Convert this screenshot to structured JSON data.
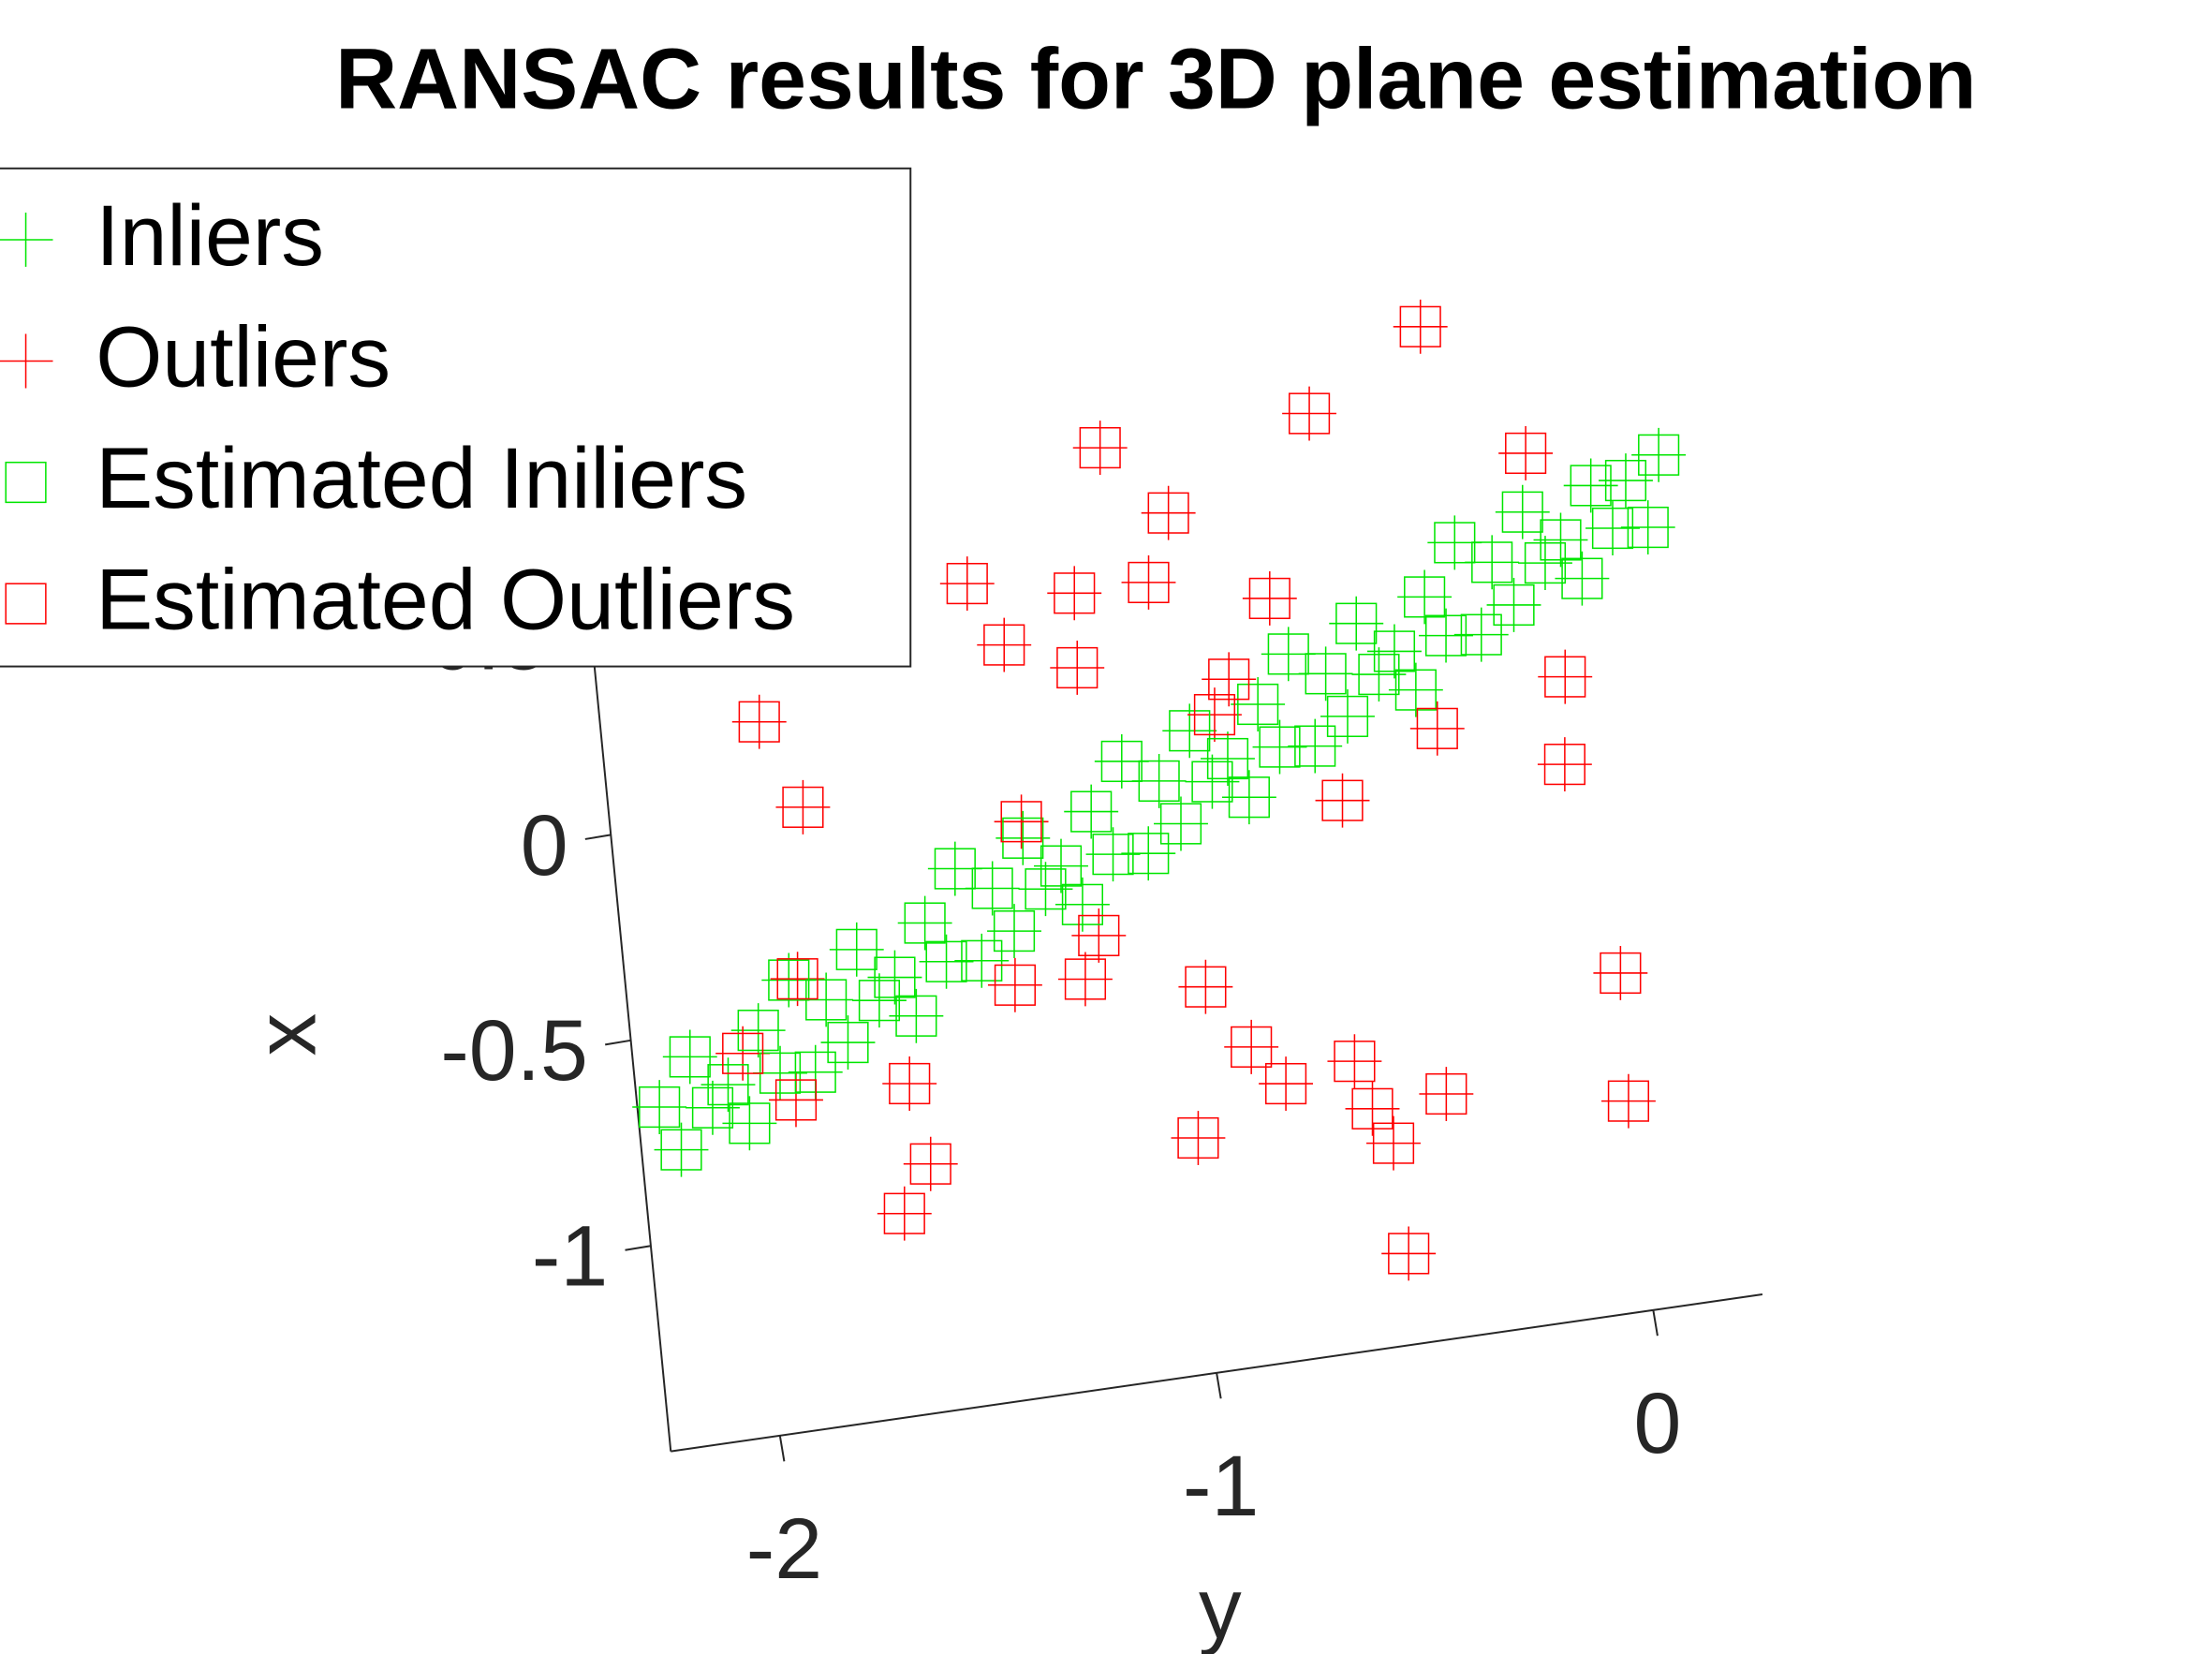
{
  "chart_data": {
    "type": "scatter3d",
    "title": "RANSAC results for 3D plane estimation",
    "xlabel": "y",
    "ylabel": "x",
    "xlim": [
      -2.25,
      0.25
    ],
    "ylim": [
      -1.5,
      1
    ],
    "xticks": [
      -2,
      -1,
      0
    ],
    "yticks": [
      -1,
      -0.5,
      0,
      0.5
    ],
    "legend": "northwest",
    "series": [
      {
        "name": "Inliers",
        "color": "#00e600",
        "marker": "plus",
        "x": [
          -2.2,
          -2.16,
          -2.12,
          -2.08,
          -2.04,
          -2,
          -1.96,
          -1.92,
          -1.88,
          -1.84,
          -1.8,
          -1.76,
          -1.72,
          -1.68,
          -1.64,
          -1.6,
          -1.56,
          -1.52,
          -1.48,
          -1.44,
          -1.4,
          -1.36,
          -1.32,
          -1.28,
          -1.24,
          -1.2,
          -1.16,
          -1.12,
          -1.08,
          -1.04,
          -1,
          -0.96,
          -0.92,
          -0.88,
          -0.84,
          -0.8,
          -0.76,
          -0.72,
          -0.68,
          -0.64,
          -0.6,
          -0.56,
          -0.52,
          -0.48,
          -0.44,
          -0.4,
          -0.36,
          -0.32,
          -0.28,
          -0.24,
          -0.2,
          -0.16,
          -0.12,
          -0.08,
          -0.04,
          0,
          0.04,
          0.08,
          0.12,
          0.16,
          0.2
        ],
        "values": [
          -0.67,
          -0.78,
          -0.56,
          -0.69,
          -0.64,
          -0.74,
          -0.52,
          -0.63,
          -0.41,
          -0.64,
          -0.47,
          -0.58,
          -0.36,
          -0.49,
          -0.44,
          -0.54,
          -0.32,
          -0.42,
          -0.2,
          -0.43,
          -0.26,
          -0.37,
          -0.15,
          -0.28,
          -0.23,
          -0.33,
          -0.11,
          -0.22,
          0,
          -0.23,
          -0.06,
          -0.17,
          0.05,
          -0.08,
          -0.03,
          -0.13,
          0.09,
          -0.02,
          0.2,
          -0.03,
          0.14,
          0.03,
          0.25,
          0.12,
          0.17,
          0.07,
          0.29,
          0.19,
          0.41,
          0.18,
          0.35,
          0.24,
          0.46,
          0.33,
          0.38,
          0.28,
          0.5,
          0.39,
          0.5,
          0.38,
          0.55
        ]
      },
      {
        "name": "Outliers",
        "color": "#ff0000",
        "marker": "plus",
        "x": [
          -0.31,
          -0.58,
          -1.06,
          -0.1,
          -0.92,
          -1.39,
          -1.15,
          -0.98,
          -0.71,
          -1.32,
          -1.16,
          -1.89,
          -0.06,
          -0.08,
          -1.81,
          0,
          -0.94,
          -1.86,
          -0.85,
          -0.62,
          -0.42,
          -0.01,
          -1.63,
          -1.6,
          -1.67,
          -0.99,
          -0.55,
          -0.54,
          -0.78,
          -0.59,
          -2,
          -1.89,
          -1.37,
          -1.21,
          -1.17,
          -1.32,
          -0.82,
          -0.36,
          -0.59,
          -0.86
        ],
        "values": [
          0.94,
          0.77,
          0.76,
          0.6,
          0.58,
          0.48,
          0.42,
          0.42,
          0.34,
          0.32,
          0.24,
          0.22,
          0.05,
          -0.16,
          0,
          -0.68,
          -0.57,
          -0.41,
          -0.73,
          -0.8,
          -0.91,
          -0.99,
          -0.7,
          -0.9,
          -1.01,
          -0.93,
          -1.01,
          -1.28,
          -0.83,
          -0.92,
          -0.57,
          -0.7,
          -0.5,
          -0.51,
          -0.41,
          -0.11,
          0.16,
          -0.03,
          -0.17,
          0.08
        ]
      },
      {
        "name": "Estimated Iniliers",
        "color": "#00e600",
        "marker": "square",
        "x": [
          -2.2,
          -2.16,
          -2.12,
          -2.08,
          -2.04,
          -2,
          -1.96,
          -1.92,
          -1.88,
          -1.84,
          -1.8,
          -1.76,
          -1.72,
          -1.68,
          -1.64,
          -1.6,
          -1.56,
          -1.52,
          -1.48,
          -1.44,
          -1.4,
          -1.36,
          -1.32,
          -1.28,
          -1.24,
          -1.2,
          -1.16,
          -1.12,
          -1.08,
          -1.04,
          -1,
          -0.96,
          -0.92,
          -0.88,
          -0.84,
          -0.8,
          -0.76,
          -0.72,
          -0.68,
          -0.64,
          -0.6,
          -0.56,
          -0.52,
          -0.48,
          -0.44,
          -0.4,
          -0.36,
          -0.32,
          -0.28,
          -0.24,
          -0.2,
          -0.16,
          -0.12,
          -0.08,
          -0.04,
          0,
          0.04,
          0.08,
          0.12,
          0.16,
          0.2
        ],
        "values": [
          -0.67,
          -0.78,
          -0.56,
          -0.69,
          -0.64,
          -0.74,
          -0.52,
          -0.63,
          -0.41,
          -0.64,
          -0.47,
          -0.58,
          -0.36,
          -0.49,
          -0.44,
          -0.54,
          -0.32,
          -0.42,
          -0.2,
          -0.43,
          -0.26,
          -0.37,
          -0.15,
          -0.28,
          -0.23,
          -0.33,
          -0.11,
          -0.22,
          0,
          -0.23,
          -0.06,
          -0.17,
          0.05,
          -0.08,
          -0.03,
          -0.13,
          0.09,
          -0.02,
          0.2,
          -0.03,
          0.14,
          0.03,
          0.25,
          0.12,
          0.17,
          0.07,
          0.29,
          0.19,
          0.41,
          0.18,
          0.35,
          0.24,
          0.46,
          0.33,
          0.38,
          0.28,
          0.5,
          0.39,
          0.5,
          0.38,
          0.55
        ]
      },
      {
        "name": "Estimated Outliers",
        "color": "#ff0000",
        "marker": "square",
        "x": [
          -0.31,
          -0.58,
          -1.06,
          -0.1,
          -0.92,
          -1.39,
          -1.15,
          -0.98,
          -0.71,
          -1.32,
          -1.16,
          -1.89,
          -0.06,
          -0.08,
          -1.81,
          0,
          -0.94,
          -1.86,
          -0.85,
          -0.62,
          -0.42,
          -0.01,
          -1.63,
          -1.6,
          -1.67,
          -0.99,
          -0.55,
          -0.54,
          -0.78,
          -0.59,
          -2,
          -1.89,
          -1.37,
          -1.21,
          -1.17,
          -1.32,
          -0.82,
          -0.36,
          -0.59,
          -0.86
        ],
        "values": [
          0.94,
          0.77,
          0.76,
          0.6,
          0.58,
          0.48,
          0.42,
          0.42,
          0.34,
          0.32,
          0.24,
          0.22,
          0.05,
          -0.16,
          0,
          -0.68,
          -0.57,
          -0.41,
          -0.73,
          -0.8,
          -0.91,
          -0.99,
          -0.7,
          -0.9,
          -1.01,
          -0.93,
          -1.01,
          -1.28,
          -0.83,
          -0.92,
          -0.57,
          -0.7,
          -0.5,
          -0.51,
          -0.41,
          -0.11,
          0.16,
          -0.03,
          -0.17,
          0.08
        ]
      }
    ]
  }
}
